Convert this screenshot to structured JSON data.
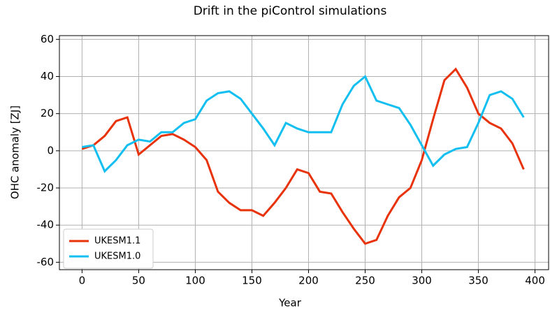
{
  "chart_data": {
    "type": "line",
    "title": "Drift in the piControl simulations",
    "x_label": "Year",
    "y_label": "OHC anomaly [ZJ]",
    "x": [
      0,
      10,
      20,
      30,
      40,
      50,
      60,
      70,
      80,
      90,
      100,
      110,
      120,
      130,
      140,
      150,
      160,
      170,
      180,
      190,
      200,
      210,
      220,
      230,
      240,
      250,
      260,
      270,
      280,
      290,
      300,
      310,
      320,
      330,
      340,
      350,
      360,
      370,
      380,
      390
    ],
    "series": [
      {
        "name": "UKESM1.1",
        "color": "#e8320a",
        "values": [
          1,
          3,
          8,
          16,
          18,
          -2,
          3,
          8,
          9,
          6,
          2,
          -5,
          -22,
          -28,
          -32,
          -32,
          -35,
          -28,
          -20,
          -10,
          -12,
          -22,
          -23,
          -33,
          -42,
          -50,
          -48,
          -35,
          -25,
          -20,
          -5,
          17,
          38,
          44,
          34,
          20,
          15,
          12,
          4,
          -10
        ]
      },
      {
        "name": "UKESM1.0",
        "color": "#12bff0",
        "values": [
          2,
          3,
          -11,
          -5,
          3,
          6,
          5,
          10,
          10,
          15,
          17,
          27,
          31,
          32,
          28,
          20,
          12,
          3,
          15,
          12,
          10,
          10,
          10,
          25,
          35,
          40,
          27,
          25,
          23,
          14,
          3,
          -8,
          -2,
          1,
          2,
          15,
          30,
          32,
          28,
          18
        ]
      }
    ],
    "xlim": [
      -20,
      412
    ],
    "ylim": [
      -64,
      62
    ],
    "xticks": [
      0,
      50,
      100,
      150,
      200,
      250,
      300,
      350,
      400
    ],
    "yticks": [
      -60,
      -40,
      -20,
      0,
      20,
      40,
      60
    ],
    "grid": true,
    "legend": "lower left"
  }
}
